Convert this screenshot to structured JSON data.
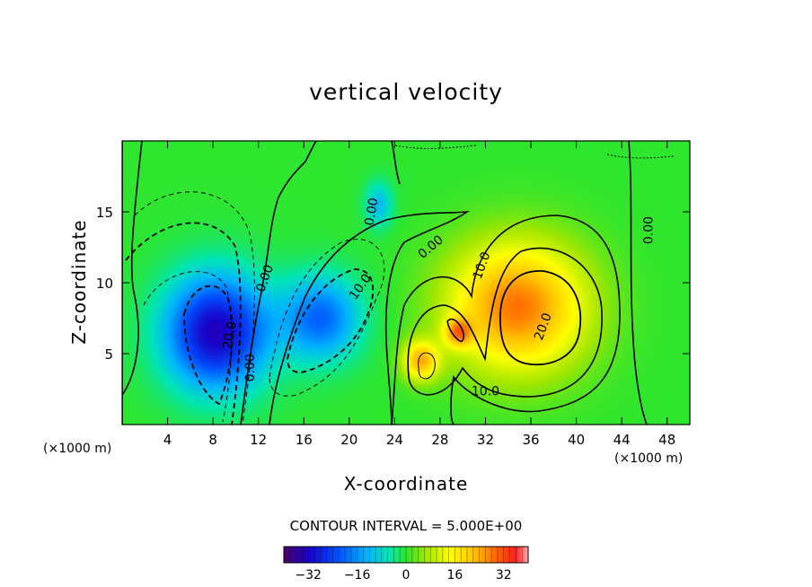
{
  "title": "vertical velocity",
  "chart_data": {
    "type": "heatmap",
    "title": "vertical velocity",
    "xlabel": "X-coordinate",
    "ylabel": "Z-coordinate",
    "x_unit_left": "(×1000 m)",
    "x_unit_right": "(×1000 m)",
    "xlim": [
      0,
      50
    ],
    "ylim": [
      0,
      20
    ],
    "x_ticks": [
      4,
      8,
      12,
      16,
      20,
      24,
      28,
      32,
      36,
      40,
      44,
      48
    ],
    "y_ticks": [
      5,
      10,
      15
    ],
    "contour_interval_text": "CONTOUR INTERVAL = 5.000E+00",
    "contour_interval": 5,
    "colorbar": {
      "min": -40,
      "max": 40,
      "ticks": [
        -32,
        -16,
        0,
        16,
        32
      ]
    },
    "contour_labels": [
      {
        "text": "0.00",
        "x": 22.0,
        "z": 15.0
      },
      {
        "text": "0.00",
        "x": 12.6,
        "z": 10.3
      },
      {
        "text": "10.0",
        "x": 21.0,
        "z": 9.7
      },
      {
        "text": "0.00",
        "x": 27.2,
        "z": 12.5
      },
      {
        "text": "10.0",
        "x": 31.7,
        "z": 11.2
      },
      {
        "text": "20.0",
        "x": 37.1,
        "z": 6.9
      },
      {
        "text": "10.0",
        "x": 32.0,
        "z": 2.3
      },
      {
        "text": "0.00",
        "x": 46.4,
        "z": 13.7
      },
      {
        "text": "20.0",
        "x": 9.5,
        "z": 6.3
      },
      {
        "text": "0.00",
        "x": 11.3,
        "z": 4.0
      }
    ],
    "extrema": [
      {
        "kind": "min",
        "x": 8.3,
        "z": 6.5,
        "value": -33
      },
      {
        "kind": "min",
        "x": 17.5,
        "z": 7.5,
        "value": -20
      },
      {
        "kind": "min",
        "x": 22.6,
        "z": 15.5,
        "value": -12
      },
      {
        "kind": "max",
        "x": 34.8,
        "z": 8.3,
        "value": 28
      },
      {
        "kind": "max",
        "x": 26.3,
        "z": 4.5,
        "value": 22
      },
      {
        "kind": "max",
        "x": 29.6,
        "z": 6.5,
        "value": 20
      }
    ]
  }
}
